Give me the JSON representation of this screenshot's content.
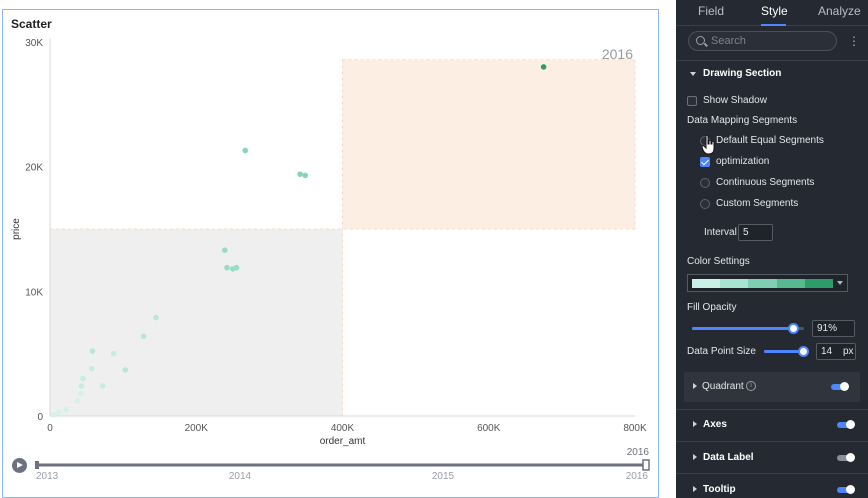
{
  "chart_card": {
    "title": "Scatter"
  },
  "chart_data": {
    "type": "scatter",
    "title": "Scatter",
    "xlabel": "order_amt",
    "ylabel": "price",
    "xlim": [
      0,
      800000
    ],
    "ylim": [
      0,
      30000
    ],
    "x_ticks": [
      0,
      200000,
      400000,
      600000,
      800000
    ],
    "x_tick_labels": [
      "0",
      "200K",
      "400K",
      "600K",
      "800K"
    ],
    "y_ticks": [
      0,
      10000,
      20000,
      30000
    ],
    "y_tick_labels": [
      "0",
      "10K",
      "20K",
      "30K"
    ],
    "quadrant_split": {
      "x": 400000,
      "y": 15000
    },
    "quadrant_colors": {
      "top_right": "#fdeee3",
      "bottom_left": "#efefef"
    },
    "year_label": "2016",
    "points": [
      {
        "x": 675000,
        "y": 28000,
        "color": "#2e9c6a"
      },
      {
        "x": 267000,
        "y": 21300,
        "color": "#86d4bc"
      },
      {
        "x": 342000,
        "y": 19400,
        "color": "#86d4bc"
      },
      {
        "x": 349000,
        "y": 19300,
        "color": "#86d4bc"
      },
      {
        "x": 239000,
        "y": 13300,
        "color": "#98dcc6"
      },
      {
        "x": 242000,
        "y": 11900,
        "color": "#98dcc6"
      },
      {
        "x": 250000,
        "y": 11800,
        "color": "#98dcc6"
      },
      {
        "x": 255000,
        "y": 11900,
        "color": "#98dcc6"
      },
      {
        "x": 145000,
        "y": 7900,
        "color": "#b7e8d6"
      },
      {
        "x": 128000,
        "y": 6400,
        "color": "#b7e8d6"
      },
      {
        "x": 58000,
        "y": 5200,
        "color": "#b7e8d6"
      },
      {
        "x": 87000,
        "y": 5000,
        "color": "#c6eee0"
      },
      {
        "x": 57000,
        "y": 3800,
        "color": "#c6eee0"
      },
      {
        "x": 103000,
        "y": 3700,
        "color": "#b7e8d6"
      },
      {
        "x": 45000,
        "y": 3000,
        "color": "#c6eee0"
      },
      {
        "x": 72000,
        "y": 2400,
        "color": "#c6eee0"
      },
      {
        "x": 43000,
        "y": 2400,
        "color": "#c6eee0"
      },
      {
        "x": 42000,
        "y": 1800,
        "color": "#d3f3e8"
      },
      {
        "x": 38000,
        "y": 1200,
        "color": "#d3f3e8"
      },
      {
        "x": 22000,
        "y": 500,
        "color": "#d3f3e8"
      },
      {
        "x": 12000,
        "y": 300,
        "color": "#d3f3e8"
      },
      {
        "x": 5000,
        "y": 100,
        "color": "#d3f3e8"
      }
    ],
    "grid": false
  },
  "timeline": {
    "years": [
      "2013",
      "2014",
      "2015",
      "2016"
    ],
    "current": "2016",
    "progress": 1.0
  },
  "panel": {
    "tabs": [
      "Field",
      "Style",
      "Analyze"
    ],
    "active_tab": "Style",
    "search_placeholder": "Search",
    "drawing_section": "Drawing Section",
    "show_shadow": "Show Shadow",
    "data_mapping_segments": "Data Mapping Segments",
    "default_equal_segments": "Default Equal Segments",
    "optimization": "optimization",
    "continuous_segments": "Continuous Segments",
    "custom_segments": "Custom Segments",
    "interval_label": "Interval",
    "interval_value": "5",
    "color_settings": "Color Settings",
    "color_ramp": [
      "#c9f0e5",
      "#a6e3d0",
      "#7fd0b3",
      "#56b990",
      "#2e9c6a"
    ],
    "fill_opacity_label": "Fill Opacity",
    "fill_opacity_value": "91%",
    "fill_opacity_fraction": 0.91,
    "point_size_label": "Data Point Size",
    "point_size_value": "14",
    "point_size_unit": "px",
    "point_size_fraction": 0.95,
    "quadrant": "Quadrant",
    "axes": "Axes",
    "data_label": "Data Label",
    "tooltip": "Tooltip"
  }
}
